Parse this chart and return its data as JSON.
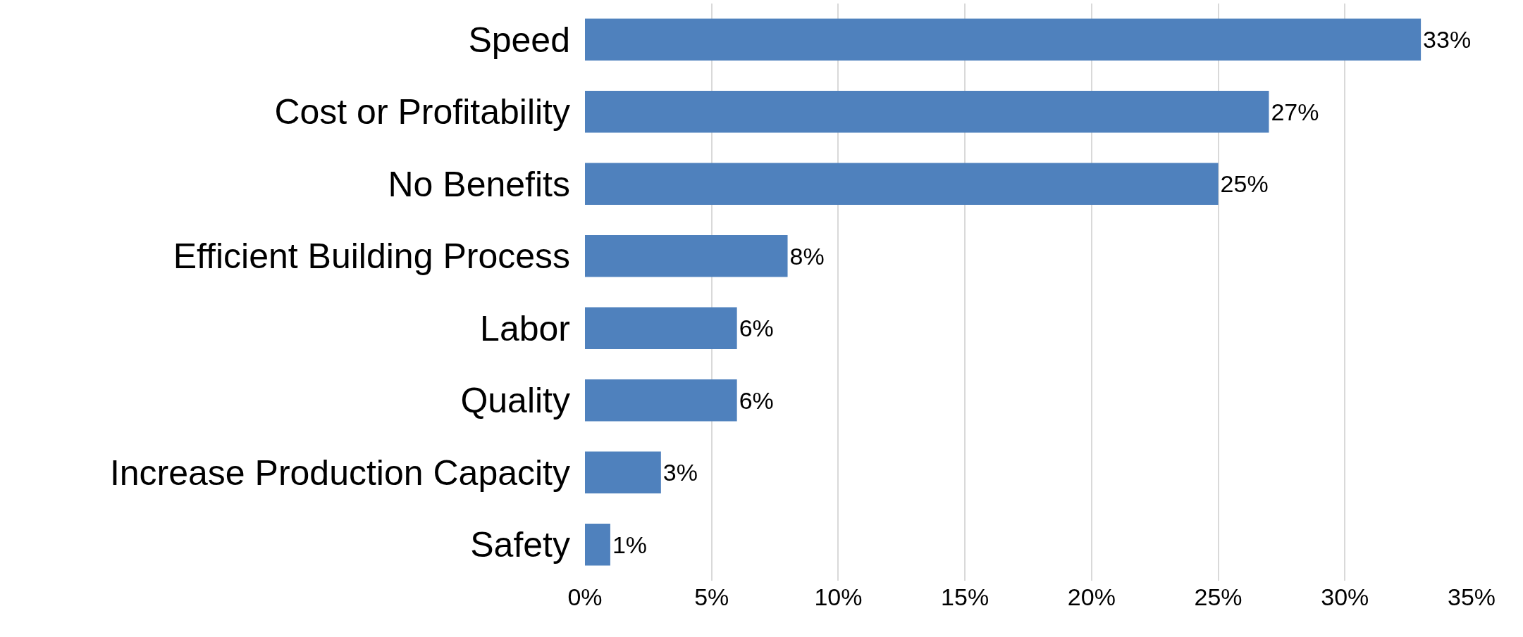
{
  "chart_data": {
    "type": "bar",
    "orientation": "horizontal",
    "categories": [
      "Speed",
      "Cost or Profitability",
      "No Benefits",
      "Efficient Building Process",
      "Labor",
      "Quality",
      "Increase Production Capacity",
      "Safety"
    ],
    "values": [
      33,
      27,
      25,
      8,
      6,
      6,
      3,
      1
    ],
    "value_labels": [
      "33%",
      "27%",
      "25%",
      "8%",
      "6%",
      "6%",
      "3%",
      "1%"
    ],
    "color": "#4f81bd",
    "xlim": [
      0,
      35
    ],
    "xticks": [
      {
        "value": 0,
        "label": "0%"
      },
      {
        "value": 5,
        "label": "5%"
      },
      {
        "value": 10,
        "label": "10%"
      },
      {
        "value": 15,
        "label": "15%"
      },
      {
        "value": 20,
        "label": "20%"
      },
      {
        "value": 25,
        "label": "25%"
      },
      {
        "value": 30,
        "label": "30%"
      },
      {
        "value": 35,
        "label": "35%"
      }
    ],
    "grid": "x"
  }
}
